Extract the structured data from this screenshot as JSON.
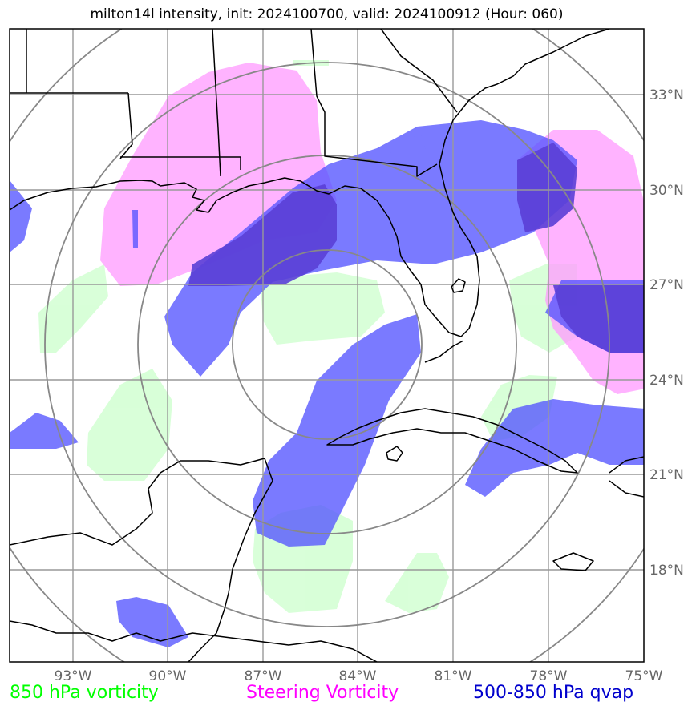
{
  "title": "milton14l intensity, init: 2024100700, valid: 2024100912 (Hour: 060)",
  "lon_ticks": [
    "93°W",
    "90°W",
    "87°W",
    "84°W",
    "81°W",
    "78°W",
    "75°W"
  ],
  "lat_ticks": [
    "33°N",
    "30°N",
    "27°N",
    "24°N",
    "21°N",
    "18°N"
  ],
  "legend": [
    {
      "label": "850 hPa vorticity",
      "color": "#00ff00"
    },
    {
      "label": "Steering Vorticity",
      "color": "#ff00ff"
    },
    {
      "label": "500-850 hPa qvap",
      "color": "#0000cd"
    }
  ],
  "colors": {
    "vorticity_850": "#ccffcc",
    "steering_vorticity": "#ff99ff",
    "qvap_500_850": "#5555ff",
    "overlap": "#5a4bd6",
    "grid": "#999999",
    "range_rings": "#888888"
  },
  "map_extent": {
    "lon": [
      -95,
      -75
    ],
    "lat": [
      15,
      35
    ]
  }
}
